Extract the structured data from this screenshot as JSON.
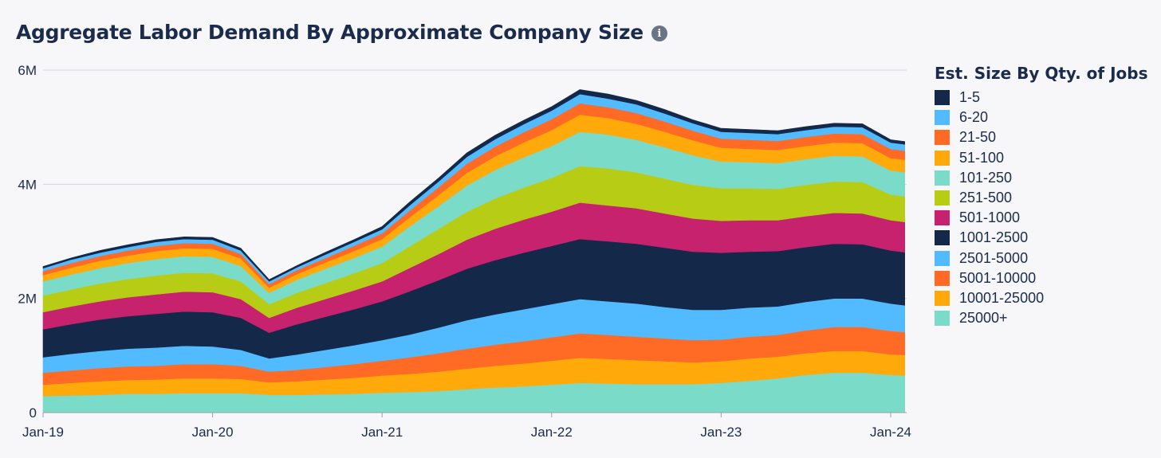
{
  "header": {
    "title": "Aggregate Labor Demand By Approximate Company Size",
    "info_icon": "info-icon"
  },
  "chart_data": {
    "type": "area",
    "stacked": true,
    "title": "Aggregate Labor Demand By Approximate Company Size",
    "xlabel": "",
    "ylabel": "",
    "ylim": [
      0,
      6000000
    ],
    "y_ticks": [
      {
        "value": 0,
        "label": "0"
      },
      {
        "value": 2000000,
        "label": "2M"
      },
      {
        "value": 4000000,
        "label": "4M"
      },
      {
        "value": 6000000,
        "label": "6M"
      }
    ],
    "x_ticks": [
      {
        "value": "2019-01",
        "label": "Jan-19"
      },
      {
        "value": "2020-01",
        "label": "Jan-20"
      },
      {
        "value": "2021-01",
        "label": "Jan-21"
      },
      {
        "value": "2022-01",
        "label": "Jan-22"
      },
      {
        "value": "2023-01",
        "label": "Jan-23"
      },
      {
        "value": "2024-01",
        "label": "Jan-24"
      }
    ],
    "x": [
      "2019-01",
      "2019-03",
      "2019-05",
      "2019-07",
      "2019-09",
      "2019-11",
      "2020-01",
      "2020-03",
      "2020-05",
      "2020-07",
      "2020-09",
      "2020-11",
      "2021-01",
      "2021-03",
      "2021-05",
      "2021-07",
      "2021-09",
      "2021-11",
      "2022-01",
      "2022-03",
      "2022-05",
      "2022-07",
      "2022-09",
      "2022-11",
      "2023-01",
      "2023-03",
      "2023-05",
      "2023-07",
      "2023-09",
      "2023-11",
      "2024-01",
      "2024-02"
    ],
    "grid": true,
    "legend": {
      "title": "Est. Size By Qty. of Jobs",
      "position": "right"
    },
    "series": [
      {
        "name": "25000+",
        "color": "#7adbc8",
        "values": [
          0.29,
          0.3,
          0.31,
          0.33,
          0.33,
          0.34,
          0.34,
          0.34,
          0.31,
          0.31,
          0.32,
          0.33,
          0.35,
          0.36,
          0.38,
          0.41,
          0.44,
          0.46,
          0.49,
          0.52,
          0.51,
          0.5,
          0.5,
          0.5,
          0.52,
          0.56,
          0.6,
          0.66,
          0.7,
          0.7,
          0.66,
          0.65
        ]
      },
      {
        "name": "10001-25000",
        "color": "#ffa90a",
        "values": [
          0.2,
          0.22,
          0.24,
          0.24,
          0.25,
          0.26,
          0.26,
          0.25,
          0.22,
          0.24,
          0.26,
          0.28,
          0.3,
          0.32,
          0.34,
          0.36,
          0.38,
          0.4,
          0.42,
          0.44,
          0.43,
          0.42,
          0.4,
          0.38,
          0.38,
          0.39,
          0.38,
          0.38,
          0.38,
          0.38,
          0.36,
          0.36
        ]
      },
      {
        "name": "5001-10000",
        "color": "#ff6a24",
        "values": [
          0.21,
          0.22,
          0.23,
          0.24,
          0.24,
          0.25,
          0.25,
          0.23,
          0.19,
          0.2,
          0.22,
          0.24,
          0.26,
          0.29,
          0.32,
          0.35,
          0.37,
          0.39,
          0.41,
          0.43,
          0.42,
          0.41,
          0.4,
          0.39,
          0.38,
          0.38,
          0.38,
          0.4,
          0.42,
          0.42,
          0.41,
          0.4
        ]
      },
      {
        "name": "2501-5000",
        "color": "#52bbff",
        "values": [
          0.27,
          0.29,
          0.3,
          0.31,
          0.32,
          0.32,
          0.31,
          0.28,
          0.23,
          0.27,
          0.3,
          0.33,
          0.36,
          0.4,
          0.45,
          0.5,
          0.53,
          0.56,
          0.58,
          0.6,
          0.59,
          0.58,
          0.55,
          0.53,
          0.52,
          0.51,
          0.5,
          0.5,
          0.5,
          0.5,
          0.48,
          0.47
        ]
      },
      {
        "name": "1001-2500",
        "color": "#14294a",
        "values": [
          0.49,
          0.52,
          0.55,
          0.57,
          0.59,
          0.6,
          0.6,
          0.56,
          0.45,
          0.53,
          0.58,
          0.63,
          0.68,
          0.76,
          0.83,
          0.9,
          0.95,
          0.99,
          1.02,
          1.05,
          1.05,
          1.05,
          1.04,
          1.02,
          1.0,
          0.98,
          0.97,
          0.96,
          0.96,
          0.95,
          0.93,
          0.93
        ]
      },
      {
        "name": "501-1000",
        "color": "#c6226d",
        "values": [
          0.3,
          0.31,
          0.32,
          0.33,
          0.34,
          0.35,
          0.35,
          0.33,
          0.26,
          0.29,
          0.31,
          0.33,
          0.35,
          0.41,
          0.46,
          0.51,
          0.55,
          0.58,
          0.6,
          0.64,
          0.63,
          0.62,
          0.6,
          0.58,
          0.56,
          0.55,
          0.54,
          0.54,
          0.54,
          0.54,
          0.53,
          0.53
        ]
      },
      {
        "name": "251-500",
        "color": "#b7cc15",
        "values": [
          0.29,
          0.3,
          0.31,
          0.32,
          0.33,
          0.33,
          0.33,
          0.31,
          0.24,
          0.26,
          0.28,
          0.3,
          0.32,
          0.38,
          0.44,
          0.49,
          0.53,
          0.56,
          0.59,
          0.64,
          0.65,
          0.63,
          0.61,
          0.59,
          0.57,
          0.56,
          0.55,
          0.55,
          0.55,
          0.55,
          0.45,
          0.45
        ]
      },
      {
        "name": "101-250",
        "color": "#7adbc8",
        "values": [
          0.25,
          0.26,
          0.27,
          0.28,
          0.29,
          0.29,
          0.29,
          0.27,
          0.2,
          0.23,
          0.25,
          0.27,
          0.29,
          0.35,
          0.4,
          0.46,
          0.5,
          0.53,
          0.56,
          0.6,
          0.59,
          0.57,
          0.55,
          0.52,
          0.47,
          0.46,
          0.45,
          0.45,
          0.45,
          0.45,
          0.42,
          0.42
        ]
      },
      {
        "name": "51-100",
        "color": "#ffa90a",
        "values": [
          0.11,
          0.12,
          0.13,
          0.13,
          0.14,
          0.14,
          0.14,
          0.13,
          0.09,
          0.1,
          0.11,
          0.12,
          0.13,
          0.16,
          0.19,
          0.22,
          0.24,
          0.26,
          0.28,
          0.3,
          0.29,
          0.28,
          0.27,
          0.26,
          0.24,
          0.23,
          0.23,
          0.23,
          0.23,
          0.23,
          0.22,
          0.22
        ]
      },
      {
        "name": "21-50",
        "color": "#ff6a24",
        "values": [
          0.07,
          0.08,
          0.08,
          0.09,
          0.09,
          0.09,
          0.09,
          0.08,
          0.06,
          0.07,
          0.08,
          0.09,
          0.1,
          0.12,
          0.14,
          0.16,
          0.17,
          0.18,
          0.19,
          0.2,
          0.19,
          0.19,
          0.18,
          0.17,
          0.16,
          0.16,
          0.16,
          0.16,
          0.16,
          0.16,
          0.16,
          0.16
        ]
      },
      {
        "name": "6-20",
        "color": "#52bbff",
        "values": [
          0.05,
          0.06,
          0.06,
          0.06,
          0.07,
          0.07,
          0.07,
          0.06,
          0.05,
          0.05,
          0.06,
          0.07,
          0.07,
          0.09,
          0.1,
          0.12,
          0.13,
          0.14,
          0.15,
          0.16,
          0.15,
          0.15,
          0.14,
          0.13,
          0.12,
          0.12,
          0.12,
          0.12,
          0.12,
          0.12,
          0.11,
          0.11
        ]
      },
      {
        "name": "1-5",
        "color": "#14294a",
        "values": [
          0.03,
          0.03,
          0.04,
          0.04,
          0.04,
          0.04,
          0.04,
          0.04,
          0.03,
          0.03,
          0.04,
          0.04,
          0.05,
          0.06,
          0.06,
          0.07,
          0.07,
          0.07,
          0.07,
          0.08,
          0.08,
          0.07,
          0.07,
          0.06,
          0.06,
          0.06,
          0.06,
          0.06,
          0.06,
          0.06,
          0.05,
          0.05
        ]
      }
    ],
    "values_unit": "millions of jobs"
  }
}
